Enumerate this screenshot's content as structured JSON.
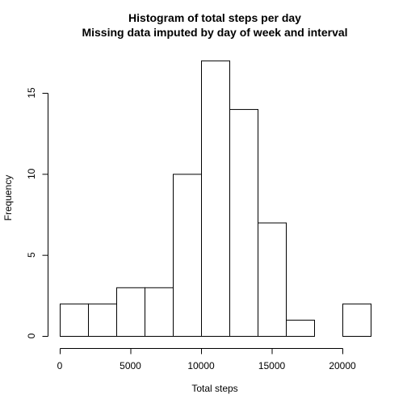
{
  "chart_data": {
    "type": "bar",
    "title": "Histogram of total steps per day",
    "subtitle": "Missing data imputed by day of week and interval",
    "xlabel": "Total steps",
    "ylabel": "Frequency",
    "bins": [
      {
        "start": 0,
        "end": 2000,
        "count": 2
      },
      {
        "start": 2000,
        "end": 4000,
        "count": 2
      },
      {
        "start": 4000,
        "end": 6000,
        "count": 3
      },
      {
        "start": 6000,
        "end": 8000,
        "count": 3
      },
      {
        "start": 8000,
        "end": 10000,
        "count": 10
      },
      {
        "start": 10000,
        "end": 12000,
        "count": 17
      },
      {
        "start": 12000,
        "end": 14000,
        "count": 14
      },
      {
        "start": 14000,
        "end": 16000,
        "count": 7
      },
      {
        "start": 16000,
        "end": 18000,
        "count": 1
      },
      {
        "start": 18000,
        "end": 20000,
        "count": 0
      },
      {
        "start": 20000,
        "end": 22000,
        "count": 2
      }
    ],
    "xlim": [
      0,
      22000
    ],
    "ylim": [
      0,
      17
    ],
    "x_ticks": [
      0,
      5000,
      10000,
      15000,
      20000
    ],
    "x_tick_labels": [
      "0",
      "5000",
      "10000",
      "15000",
      "20000"
    ],
    "y_ticks": [
      0,
      5,
      10,
      15
    ],
    "y_tick_labels": [
      "0",
      "5",
      "10",
      "15"
    ],
    "grid": false,
    "colors": {
      "bar_fill": "#ffffff",
      "bar_stroke": "#000000",
      "text": "#000000"
    }
  }
}
